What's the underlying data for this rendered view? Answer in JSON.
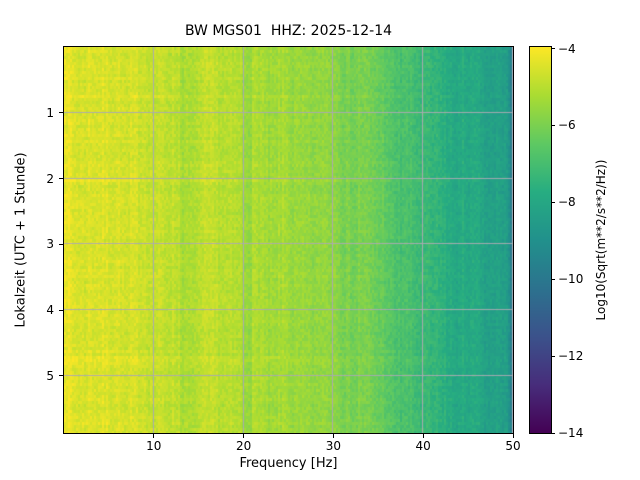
{
  "chart_data": {
    "type": "heatmap",
    "subtype": "spectrogram",
    "title": "BW MGS01  HHZ: 2025-12-14",
    "xlabel": "Frequency [Hz]",
    "ylabel": "Lokalzeit (UTC + 1 Stunde)",
    "xlim": [
      0,
      50
    ],
    "ylim_hours": [
      0,
      5.87
    ],
    "grid": true,
    "grid_color": "#aaaab2",
    "x_ticks": [
      {
        "value": 10,
        "label": "10"
      },
      {
        "value": 20,
        "label": "20"
      },
      {
        "value": 30,
        "label": "30"
      },
      {
        "value": 40,
        "label": "40"
      },
      {
        "value": 50,
        "label": "50"
      }
    ],
    "y_ticks": [
      {
        "value": 1,
        "label": "1"
      },
      {
        "value": 2,
        "label": "2"
      },
      {
        "value": 3,
        "label": "3"
      },
      {
        "value": 4,
        "label": "4"
      },
      {
        "value": 5,
        "label": "5"
      }
    ],
    "colormap": "viridis",
    "colormap_stops": [
      "#440154",
      "#472d7b",
      "#3b528b",
      "#2c728e",
      "#21918c",
      "#27ad81",
      "#5ec962",
      "#aadc32",
      "#fde725"
    ],
    "colorbar": {
      "label": "Log10(Sqrt(m**2/s**2/Hz))",
      "range": [
        -4,
        -14
      ],
      "ticks": [
        {
          "value": -4,
          "label": "−4"
        },
        {
          "value": -6,
          "label": "−6"
        },
        {
          "value": -8,
          "label": "−8"
        },
        {
          "value": -10,
          "label": "−10"
        },
        {
          "value": -12,
          "label": "−12"
        },
        {
          "value": -14,
          "label": "−14"
        }
      ]
    },
    "spectral_profile": {
      "frequencies_hz": [
        0.2,
        1,
        3,
        6,
        10,
        14,
        18,
        22,
        26,
        30,
        33,
        36,
        38,
        40,
        42,
        45,
        48,
        49.5,
        50
      ],
      "log10_values": [
        -4.15,
        -4.5,
        -4.65,
        -4.7,
        -4.85,
        -5.0,
        -5.1,
        -5.25,
        -5.4,
        -5.65,
        -5.95,
        -6.5,
        -6.9,
        -7.3,
        -7.6,
        -7.9,
        -8.2,
        -8.5,
        -10.8
      ]
    },
    "frequency_bands": [
      {
        "f": 4.5,
        "w": 2.0,
        "dv": 0.15
      },
      {
        "f": 8.3,
        "w": 1.0,
        "dv": 0.12
      },
      {
        "f": 13.8,
        "w": 0.9,
        "dv": -0.28
      },
      {
        "f": 16.5,
        "w": 0.8,
        "dv": 0.1
      },
      {
        "f": 20.4,
        "w": 0.6,
        "dv": -0.26
      },
      {
        "f": 23.0,
        "w": 0.8,
        "dv": -0.2
      },
      {
        "f": 26.8,
        "w": 1.6,
        "dv": -0.18
      },
      {
        "f": 31.8,
        "w": 1.0,
        "dv": -0.22
      },
      {
        "f": 36.8,
        "w": 0.8,
        "dv": -0.18
      },
      {
        "f": 43.5,
        "w": 0.9,
        "dv": -0.18
      },
      {
        "f": 47.3,
        "w": 0.8,
        "dv": -0.22
      }
    ],
    "noise": {
      "cell": 0.28,
      "freq_stripe": 0.16,
      "time_row": 0.12,
      "seed": 7
    }
  }
}
